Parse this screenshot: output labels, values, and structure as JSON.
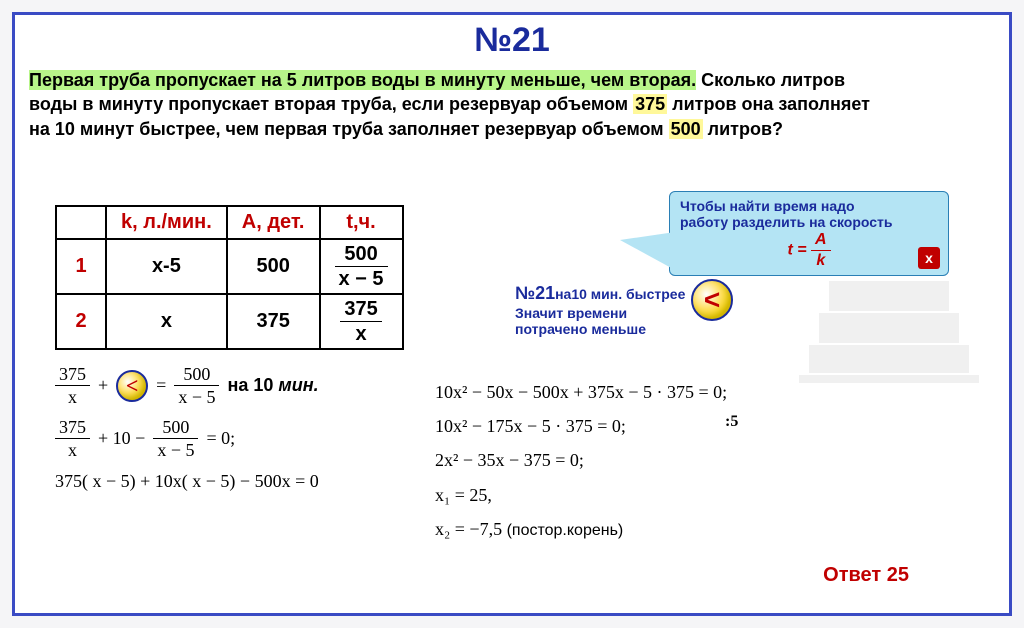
{
  "title": "№21",
  "problem": {
    "line1_hl": "Первая труба пропускает на 5 литров воды в минуту меньше, чем вторая.",
    "line1_rest": " Сколько литров",
    "line2a": "воды в минуту пропускает вторая труба, если резервуар объемом ",
    "vol1": "375",
    "line2b": " литров она заполняет",
    "line3a": "на 10 минут быстрее, чем первая труба заполняет резервуар объемом ",
    "vol2": "500",
    "line3b": " литров?"
  },
  "table": {
    "headers": [
      "",
      "k, л./мин.",
      "A, дет.",
      "t,ч."
    ],
    "rows": [
      {
        "label": "1",
        "k": "x-5",
        "a": "500",
        "t_num": "500",
        "t_den": "x − 5"
      },
      {
        "label": "2",
        "k": "x",
        "a": "375",
        "t_num": "375",
        "t_den": "x"
      }
    ]
  },
  "hint": {
    "text1": "Чтобы найти время надо",
    "text2": " работу разделить на скорость",
    "formula_lhs": "t = ",
    "formula_num": "A",
    "formula_den": "k",
    "close": "x"
  },
  "note21": {
    "label": "№21",
    "l1": "на10 мин. быстрее",
    "l2": "Значит времени",
    "l3": "потрачено меньше"
  },
  "less_symbol": "<",
  "eq_left": {
    "r1_f1_num": "375",
    "r1_f1_den": "x",
    "r1_plus": "+",
    "r1_f2_num": "500",
    "r1_f2_den": "x − 5",
    "r1_txt1": "на ",
    "r1_txt2": "10",
    "r1_txt3": " мин.",
    "r2": "375",
    "r2_den": "x",
    "r2_mid": " + 10 − ",
    "r2_f2_num": "500",
    "r2_f2_den": "x − 5",
    "r2_end": " = 0;",
    "r3": "375( x − 5) + 10x( x − 5) − 500x = 0"
  },
  "eq_right": {
    "l1": "10x² − 50x − 500x + 375x − 5 · 375 = 0;",
    "l2": "10x² − 175x − 5 · 375 = 0;",
    "div": ":5",
    "l3": "2x² − 35x − 375 = 0;",
    "l4": "x₁ = 25,",
    "l5a": "x₂ = −7,5",
    "l5b": "  (постор.корень)"
  },
  "answer": "Ответ 25"
}
